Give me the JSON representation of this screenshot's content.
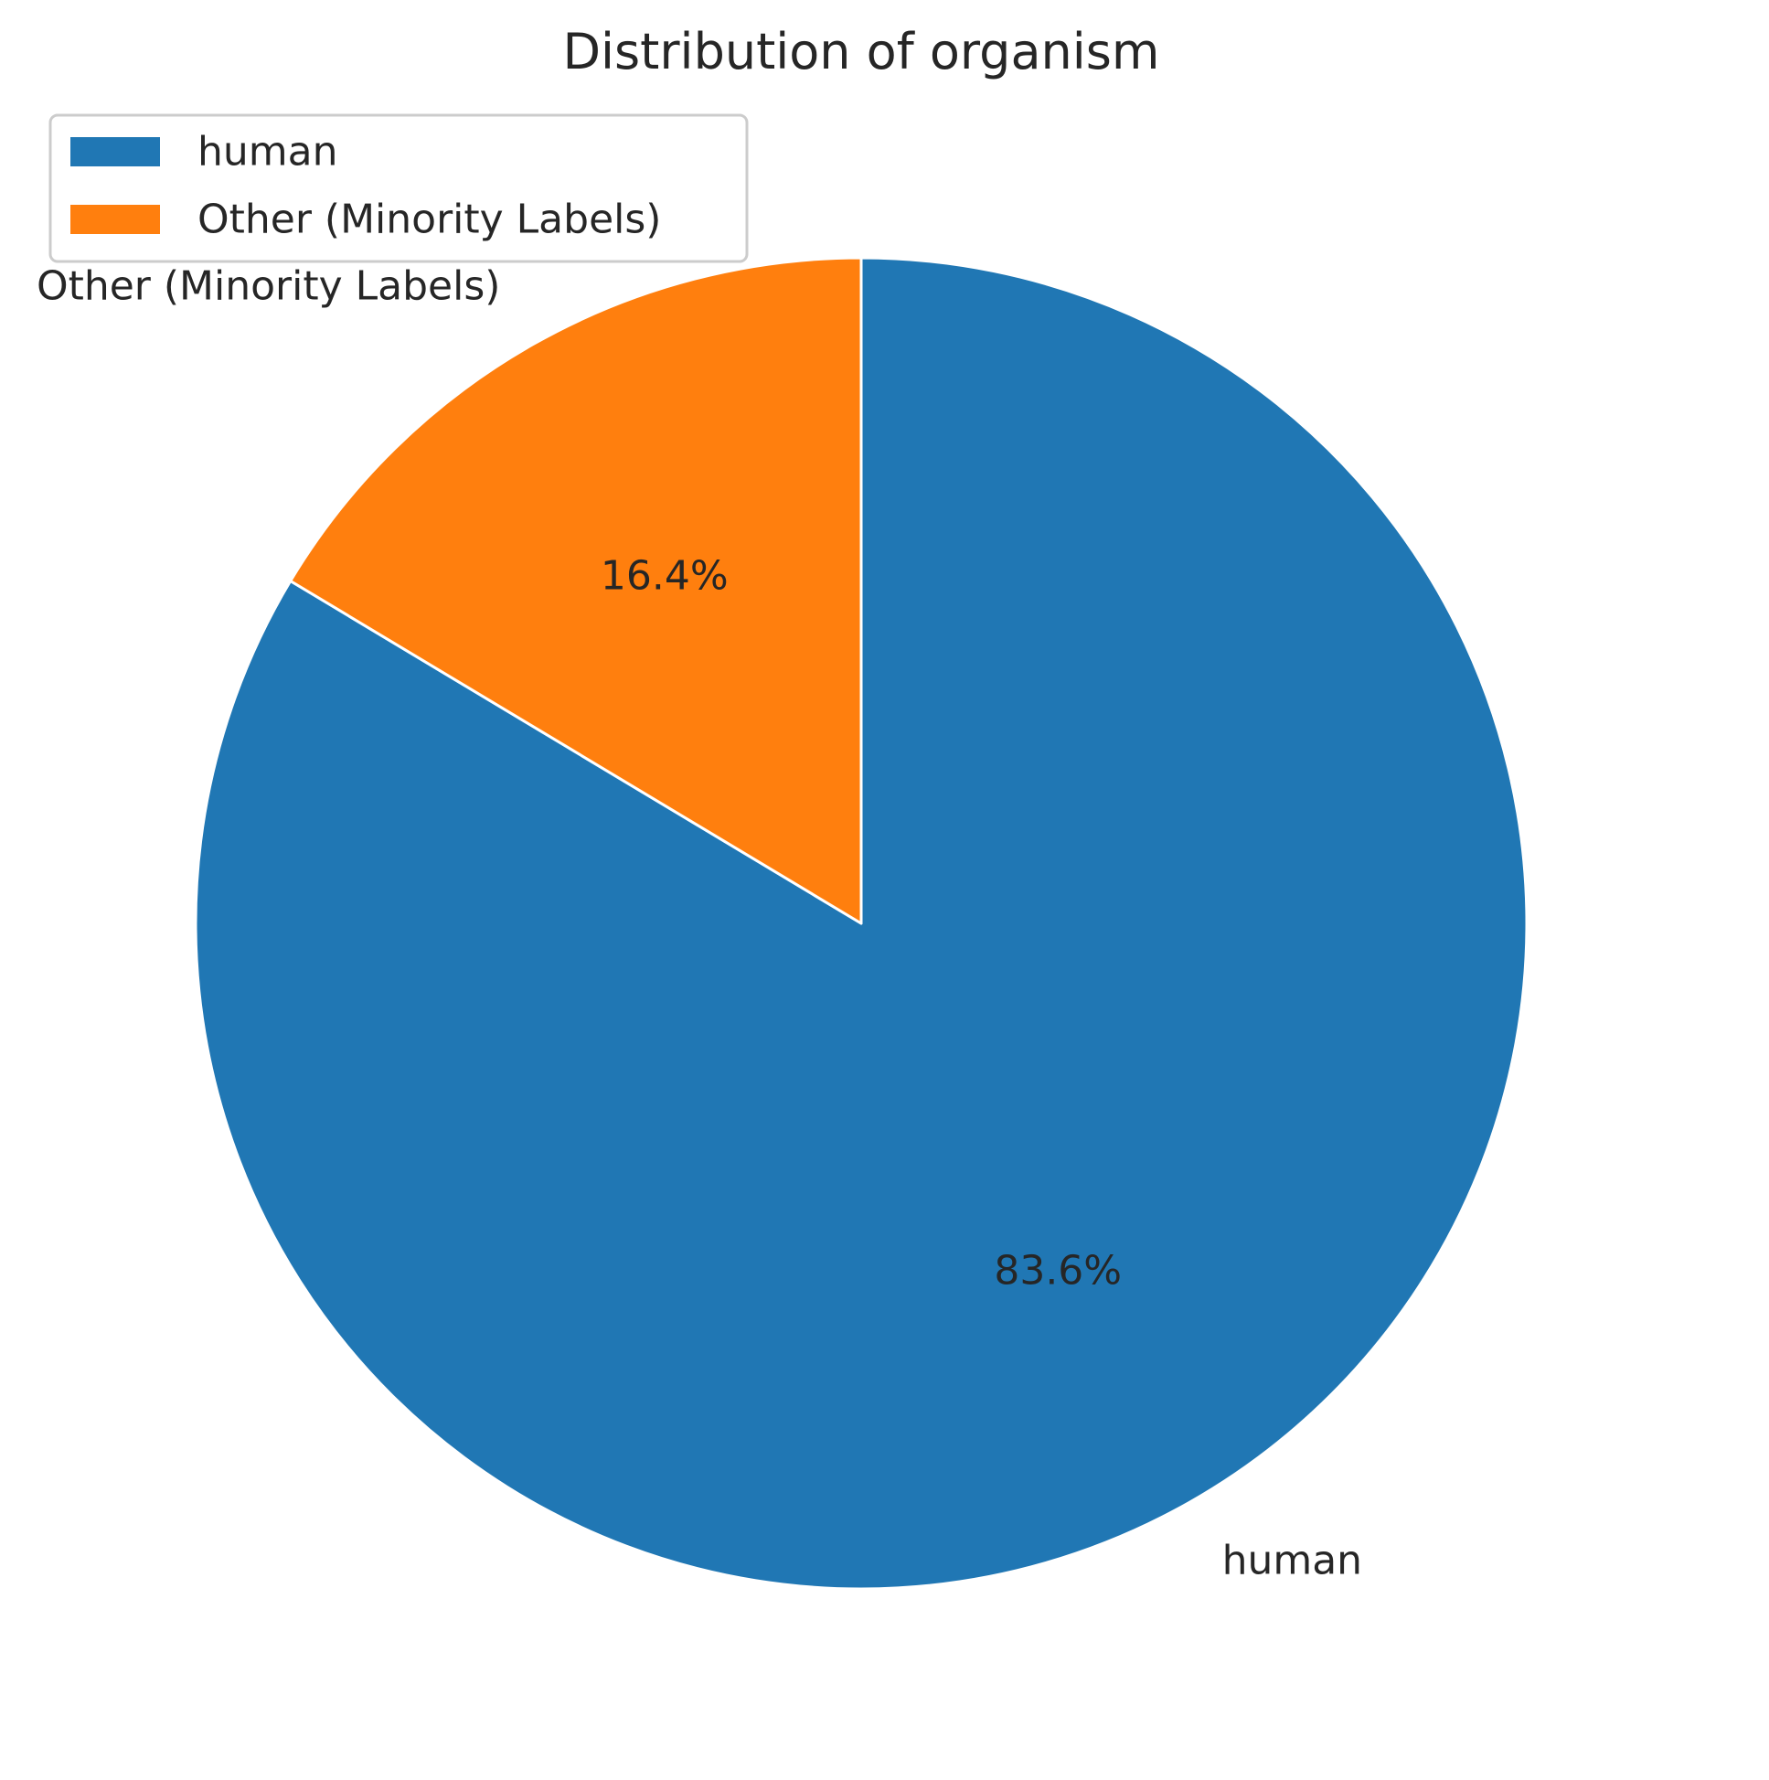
{
  "chart_data": {
    "type": "pie",
    "title": "Distribution of organism",
    "start_angle_deg": 90,
    "direction": "clockwise",
    "legend_position": "upper-left",
    "slices": [
      {
        "label": "human",
        "value": 83.6,
        "pct_label": "83.6%",
        "color": "#2077b4"
      },
      {
        "label": "Other (Minority Labels)",
        "value": 16.4,
        "pct_label": "16.4%",
        "color": "#ff7f0e"
      }
    ]
  },
  "colors": {
    "edge": "#ffffff",
    "legend_border": "#cccccc"
  }
}
